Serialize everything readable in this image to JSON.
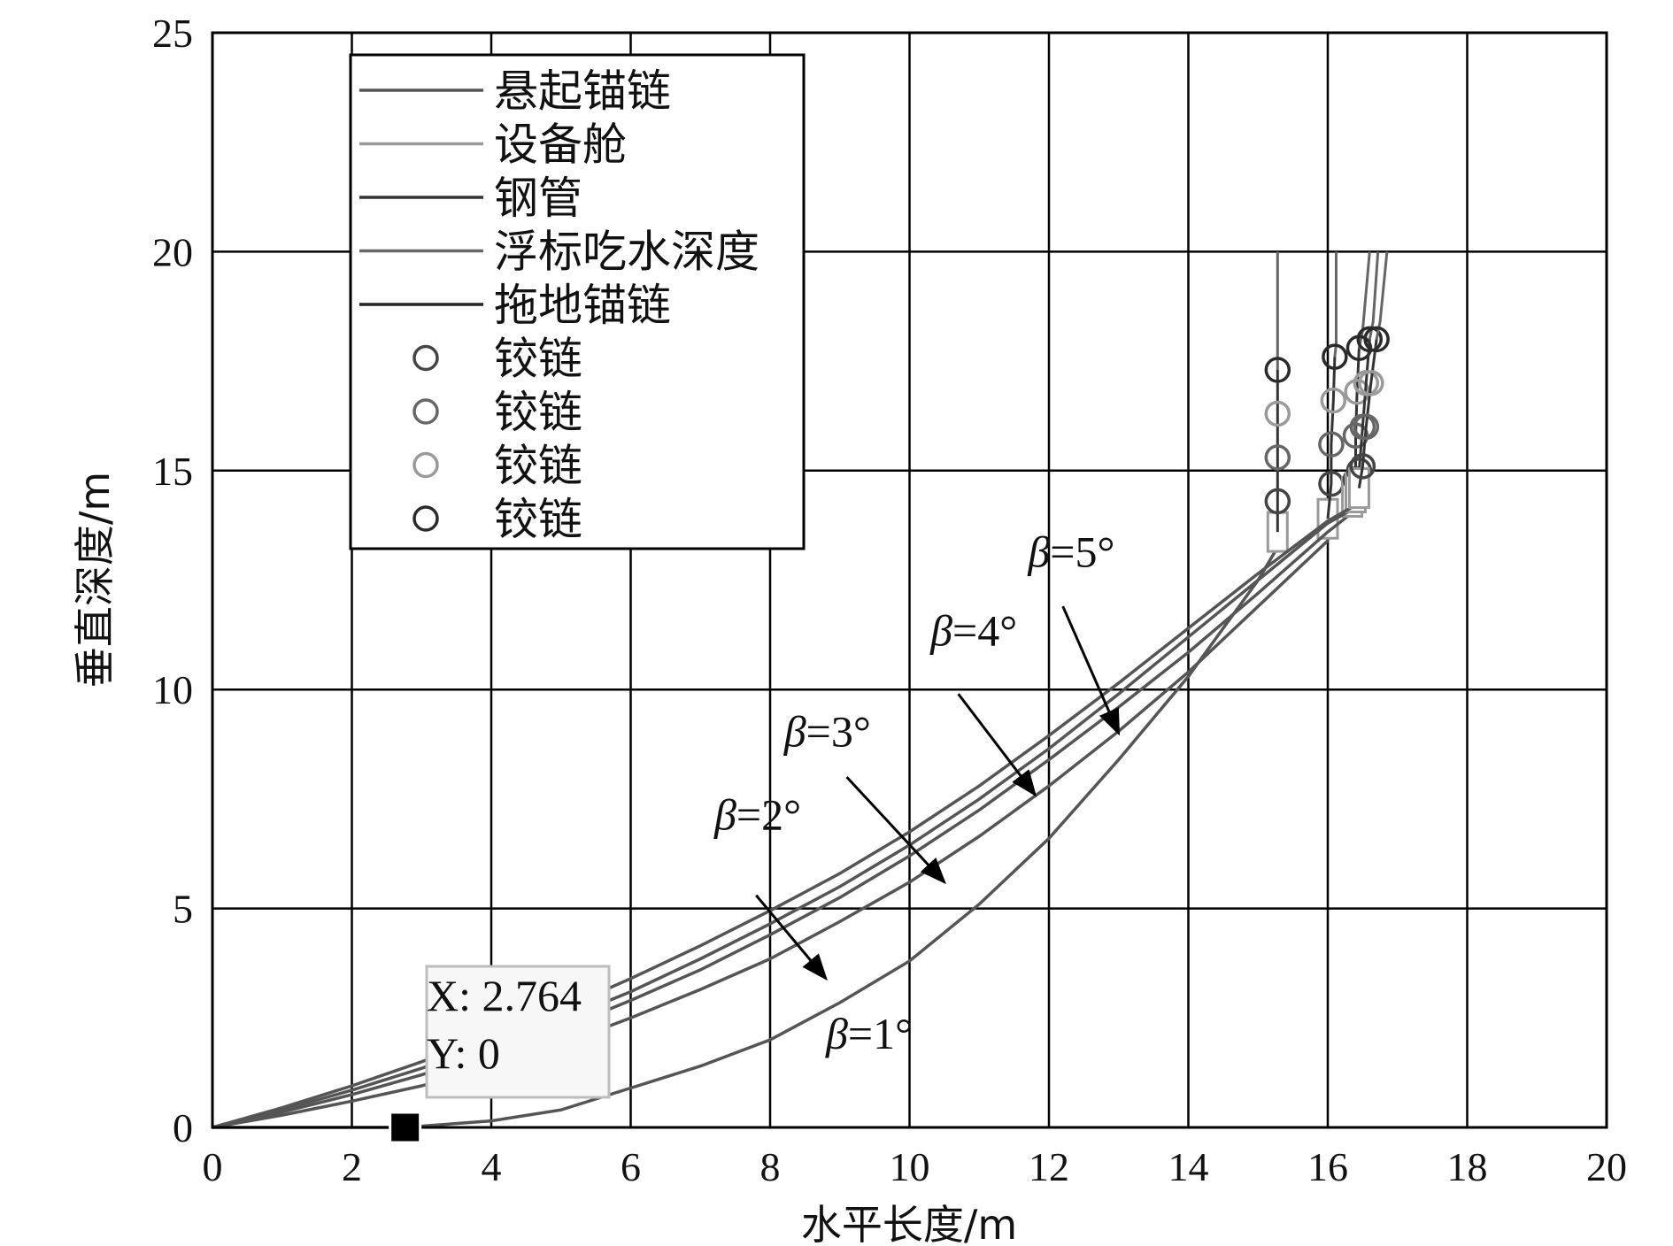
{
  "chart_data": {
    "type": "line",
    "title": "",
    "xlabel": "水平长度/m",
    "ylabel": "垂直深度/m",
    "xlim": [
      0,
      20
    ],
    "ylim": [
      0,
      25
    ],
    "xticks": [
      0,
      2,
      4,
      6,
      8,
      10,
      12,
      14,
      16,
      18,
      20
    ],
    "yticks": [
      0,
      5,
      10,
      15,
      20,
      25
    ],
    "grid": true,
    "legend": {
      "position": "top-left",
      "line_entries": [
        {
          "label": "悬起锚链",
          "color": "#555555"
        },
        {
          "label": "设备舱",
          "color": "#9a9a9a"
        },
        {
          "label": "钢管",
          "color": "#333333"
        },
        {
          "label": "浮标吃水深度",
          "color": "#666666"
        },
        {
          "label": "拖地锚链",
          "color": "#222222"
        }
      ],
      "marker_entries": [
        {
          "label": "铰链",
          "color": "#444444"
        },
        {
          "label": "铰链",
          "color": "#666666"
        },
        {
          "label": "铰链",
          "color": "#9a9a9a"
        },
        {
          "label": "铰链",
          "color": "#2a2a2a"
        }
      ]
    },
    "series": [
      {
        "curve": [
          [
            0,
            0
          ],
          [
            2,
            0
          ],
          [
            2.76,
            0
          ],
          [
            4,
            0.15
          ],
          [
            5,
            0.4
          ],
          [
            6,
            0.9
          ],
          [
            7,
            1.4
          ],
          [
            8,
            2
          ],
          [
            9,
            2.85
          ],
          [
            10,
            3.8
          ],
          [
            11,
            5.1
          ],
          [
            12,
            6.6
          ],
          [
            13,
            8.4
          ],
          [
            14,
            10.3
          ],
          [
            14.5,
            11.4
          ],
          [
            15,
            12.5
          ],
          [
            15.3,
            13.3
          ]
        ],
        "device": [
          15.28,
          13.6
        ],
        "pipe": [
          [
            15.28,
            14.3
          ],
          [
            15.28,
            15.3
          ],
          [
            15.28,
            16.3
          ],
          [
            15.28,
            17.3
          ]
        ],
        "buoy": [
          [
            15.28,
            17.6
          ],
          [
            15.28,
            20
          ]
        ]
      },
      {
        "curve": [
          [
            0,
            0
          ],
          [
            1,
            0.28
          ],
          [
            2,
            0.6
          ],
          [
            3,
            0.95
          ],
          [
            4,
            1.4
          ],
          [
            5,
            1.9
          ],
          [
            6,
            2.5
          ],
          [
            7,
            3.15
          ],
          [
            8,
            3.85
          ],
          [
            9,
            4.7
          ],
          [
            10,
            5.6
          ],
          [
            11,
            6.65
          ],
          [
            12,
            7.8
          ],
          [
            13,
            9.05
          ],
          [
            14,
            10.4
          ],
          [
            15,
            11.9
          ],
          [
            16,
            13.4
          ]
        ],
        "device": [
          16.0,
          13.9
        ],
        "pipe": [
          [
            16.05,
            14.7
          ],
          [
            16.05,
            15.6
          ],
          [
            16.08,
            16.6
          ],
          [
            16.1,
            17.6
          ]
        ],
        "buoy": [
          [
            16.12,
            17.9
          ],
          [
            16.12,
            20
          ]
        ]
      },
      {
        "curve": [
          [
            0,
            0
          ],
          [
            1,
            0.35
          ],
          [
            2,
            0.75
          ],
          [
            3,
            1.2
          ],
          [
            4,
            1.7
          ],
          [
            5,
            2.25
          ],
          [
            6,
            2.9
          ],
          [
            7,
            3.6
          ],
          [
            8,
            4.4
          ],
          [
            9,
            5.25
          ],
          [
            10,
            6.2
          ],
          [
            11,
            7.25
          ],
          [
            12,
            8.4
          ],
          [
            13,
            9.6
          ],
          [
            14,
            10.85
          ],
          [
            15,
            12.2
          ],
          [
            16,
            13.6
          ],
          [
            16.4,
            14.1
          ]
        ],
        "device": [
          16.35,
          14.4
        ],
        "pipe": [
          [
            16.4,
            14.8
          ],
          [
            16.4,
            15.8
          ],
          [
            16.42,
            16.8
          ],
          [
            16.45,
            17.8
          ]
        ],
        "buoy": [
          [
            16.5,
            18.2
          ],
          [
            16.6,
            20
          ]
        ]
      },
      {
        "curve": [
          [
            0,
            0
          ],
          [
            1,
            0.4
          ],
          [
            2,
            0.85
          ],
          [
            3,
            1.35
          ],
          [
            4,
            1.9
          ],
          [
            5,
            2.45
          ],
          [
            6,
            3.1
          ],
          [
            7,
            3.85
          ],
          [
            8,
            4.65
          ],
          [
            9,
            5.5
          ],
          [
            10,
            6.45
          ],
          [
            11,
            7.5
          ],
          [
            12,
            8.65
          ],
          [
            13,
            9.9
          ],
          [
            14,
            11.2
          ],
          [
            15,
            12.5
          ],
          [
            16,
            13.8
          ],
          [
            16.45,
            14.2
          ]
        ],
        "device": [
          16.4,
          14.5
        ],
        "pipe": [
          [
            16.45,
            15.0
          ],
          [
            16.5,
            16.0
          ],
          [
            16.55,
            17.0
          ],
          [
            16.6,
            18.0
          ]
        ],
        "buoy": [
          [
            16.65,
            18.4
          ],
          [
            16.72,
            20
          ]
        ]
      },
      {
        "curve": [
          [
            0,
            0
          ],
          [
            1,
            0.45
          ],
          [
            2,
            0.95
          ],
          [
            3,
            1.5
          ],
          [
            4,
            2.1
          ],
          [
            5,
            2.7
          ],
          [
            6,
            3.4
          ],
          [
            7,
            4.15
          ],
          [
            8,
            4.95
          ],
          [
            9,
            5.8
          ],
          [
            10,
            6.75
          ],
          [
            11,
            7.8
          ],
          [
            12,
            8.95
          ],
          [
            13,
            10.15
          ],
          [
            14,
            11.4
          ],
          [
            15,
            12.65
          ],
          [
            16,
            13.85
          ],
          [
            16.5,
            14.3
          ]
        ],
        "device": [
          16.45,
          14.6
        ],
        "pipe": [
          [
            16.5,
            15.1
          ],
          [
            16.55,
            16.0
          ],
          [
            16.62,
            17.0
          ],
          [
            16.7,
            18.0
          ]
        ],
        "buoy": [
          [
            16.75,
            18.4
          ],
          [
            16.85,
            20
          ]
        ]
      }
    ],
    "annotations": [
      {
        "beta": "β",
        "text": "=1°",
        "label_at": [
          8.8,
          1.8
        ],
        "arrow": null
      },
      {
        "beta": "β",
        "text": "=2°",
        "label_at": [
          7.2,
          6.8
        ],
        "arrow": {
          "from": [
            7.8,
            5.3
          ],
          "to": [
            8.8,
            3.4
          ]
        }
      },
      {
        "beta": "β",
        "text": "=3°",
        "label_at": [
          8.2,
          8.7
        ],
        "arrow": {
          "from": [
            9.1,
            8.0
          ],
          "to": [
            10.5,
            5.6
          ]
        }
      },
      {
        "beta": "β",
        "text": "=4°",
        "label_at": [
          10.3,
          11.0
        ],
        "arrow": {
          "from": [
            10.7,
            9.9
          ],
          "to": [
            11.8,
            7.6
          ]
        }
      },
      {
        "beta": "β",
        "text": "=5°",
        "label_at": [
          11.7,
          12.8
        ],
        "arrow": {
          "from": [
            12.2,
            11.9
          ],
          "to": [
            13.0,
            9.0
          ]
        }
      }
    ],
    "datatip": {
      "x_line": "X: 2.764",
      "y_line": "Y: 0",
      "point": [
        2.764,
        0
      ]
    }
  }
}
